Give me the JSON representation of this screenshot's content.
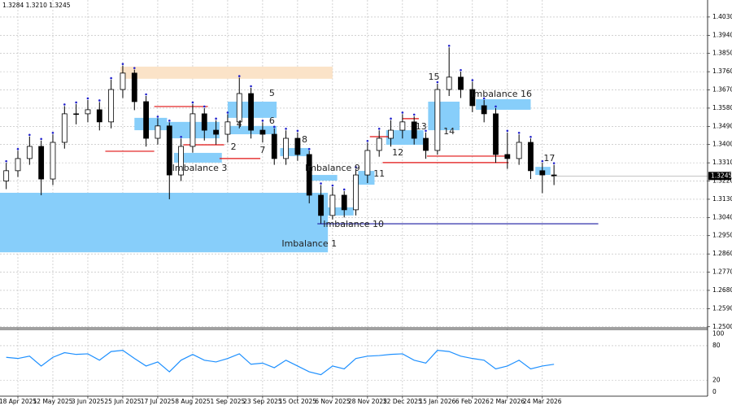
{
  "header": "1.3284 1.3210 1.3245",
  "chart_data": [
    {
      "type": "candlestick",
      "categories": [
        null,
        "18 Apr 2025",
        null,
        null,
        "12 May 2025",
        null,
        null,
        "3 Jun 2025",
        null,
        null,
        "25 Jun 2025",
        null,
        null,
        "17 Jul 2025",
        null,
        null,
        "8 Aug 2025",
        null,
        null,
        "1 Sep 2025",
        null,
        null,
        "23 Sep 2025",
        null,
        null,
        "15 Oct 2025",
        null,
        null,
        "6 Nov 2025",
        null,
        null,
        "28 Nov 2025",
        null,
        null,
        "22 Dec 2025",
        null,
        null,
        "15 Jan 2026",
        null,
        null,
        "6 Feb 2026",
        null,
        null,
        "2 Mar 2026",
        null,
        null,
        "24 Mar 2026",
        null
      ],
      "open": [
        1.322,
        1.3271,
        1.3331,
        1.3391,
        1.323,
        1.3411,
        1.3552,
        1.3552,
        1.3572,
        1.3512,
        1.3672,
        1.3753,
        1.3612,
        1.3431,
        1.3492,
        1.325,
        1.3391,
        1.3552,
        1.3471,
        1.3451,
        1.3512,
        1.3652,
        1.3471,
        1.3451,
        1.3331,
        1.3431,
        1.3351,
        1.315,
        1.305,
        1.315,
        1.3078,
        1.325,
        1.3371,
        1.3431,
        1.3471,
        1.3512,
        1.3431,
        1.3371,
        1.3672,
        1.3733,
        1.3672,
        1.3592,
        1.3552,
        1.3351,
        1.3331,
        1.3411,
        1.3271,
        1.325
      ],
      "high": [
        1.331,
        1.337,
        1.344,
        1.342,
        1.345,
        1.359,
        1.36,
        1.362,
        1.361,
        1.372,
        1.379,
        1.377,
        1.364,
        1.353,
        1.351,
        1.343,
        1.36,
        1.358,
        1.352,
        1.355,
        1.373,
        1.368,
        1.351,
        1.348,
        1.347,
        1.346,
        1.337,
        1.32,
        1.319,
        1.317,
        1.328,
        1.341,
        1.347,
        1.352,
        1.355,
        1.354,
        1.346,
        1.37,
        1.388,
        1.376,
        1.371,
        1.362,
        1.358,
        1.346,
        1.345,
        1.343,
        1.331,
        1.33
      ],
      "low": [
        1.318,
        1.324,
        1.33,
        1.315,
        1.32,
        1.338,
        1.35,
        1.351,
        1.347,
        1.348,
        1.363,
        1.357,
        1.339,
        1.34,
        1.313,
        1.322,
        1.336,
        1.342,
        1.34,
        1.341,
        1.348,
        1.343,
        1.341,
        1.33,
        1.33,
        1.332,
        1.311,
        1.301,
        1.303,
        1.304,
        1.305,
        1.321,
        1.334,
        1.339,
        1.343,
        1.34,
        1.333,
        1.335,
        1.364,
        1.363,
        1.356,
        1.351,
        1.331,
        1.328,
        1.33,
        1.323,
        1.316,
        1.32
      ],
      "close": [
        1.3271,
        1.3331,
        1.3391,
        1.323,
        1.3411,
        1.3552,
        1.3552,
        1.3572,
        1.3512,
        1.3672,
        1.3753,
        1.3612,
        1.3431,
        1.3492,
        1.325,
        1.3391,
        1.3552,
        1.3471,
        1.3451,
        1.3512,
        1.3652,
        1.3471,
        1.3451,
        1.3331,
        1.3431,
        1.3351,
        1.315,
        1.305,
        1.315,
        1.3078,
        1.325,
        1.3371,
        1.3431,
        1.3471,
        1.3512,
        1.3431,
        1.3371,
        1.3672,
        1.3733,
        1.3672,
        1.3592,
        1.3552,
        1.3351,
        1.3331,
        1.3411,
        1.3271,
        1.325,
        1.3245
      ],
      "color_up": "#ffffff",
      "color_down": "#000000",
      "xlim": [
        -0.535,
        60.18
      ],
      "ylim": [
        1.2495,
        1.4114
      ],
      "yticks": [
        {
          "value": 1.403,
          "label": "1.4030"
        },
        {
          "value": 1.394,
          "label": "1.3940"
        },
        {
          "value": 1.385,
          "label": "1.3850"
        },
        {
          "value": 1.376,
          "label": "1.3760"
        },
        {
          "value": 1.367,
          "label": "1.3670"
        },
        {
          "value": 1.358,
          "label": "1.3580"
        },
        {
          "value": 1.349,
          "label": "1.3490"
        },
        {
          "value": 1.34,
          "label": "1.3400"
        },
        {
          "value": 1.331,
          "label": "1.3310"
        },
        {
          "value": 1.322,
          "label": "1.3220"
        },
        {
          "value": 1.313,
          "label": "1.3130"
        },
        {
          "value": 1.304,
          "label": "1.3040"
        },
        {
          "value": 1.295,
          "label": "1.2950"
        },
        {
          "value": 1.286,
          "label": "1.2860"
        },
        {
          "value": 1.277,
          "label": "1.2770"
        },
        {
          "value": 1.268,
          "label": "1.2680"
        },
        {
          "value": 1.259,
          "label": "1.2590"
        },
        {
          "value": 1.25,
          "label": "1.2500"
        }
      ],
      "grid": true,
      "last_price": {
        "value": 1.3245,
        "label": "1.3245"
      },
      "zones": [
        {
          "top": 1.3162,
          "bottom": 1.2868,
          "start": -0.535,
          "end": 27.6,
          "color": "#87cefa"
        },
        {
          "top": 1.3785,
          "bottom": 1.3725,
          "start": 9.8,
          "end": 28.0,
          "color": "#fbe3c8"
        },
        {
          "top": 1.3532,
          "bottom": 1.3471,
          "start": 11.0,
          "end": 13.8,
          "color": "#87cefa"
        },
        {
          "top": 1.3512,
          "bottom": 1.3431,
          "start": 13.8,
          "end": 18.3,
          "color": "#87cefa"
        },
        {
          "top": 1.3359,
          "bottom": 1.3311,
          "start": 14.4,
          "end": 18.5,
          "color": "#87cefa"
        },
        {
          "top": 1.3612,
          "bottom": 1.3532,
          "start": 19.0,
          "end": 23.2,
          "color": "#87cefa"
        },
        {
          "top": 1.3492,
          "bottom": 1.3451,
          "start": 19.0,
          "end": 23.2,
          "color": "#87cefa"
        },
        {
          "top": 1.3383,
          "bottom": 1.3343,
          "start": 23.5,
          "end": 26.0,
          "color": "#87cefa"
        },
        {
          "top": 1.325,
          "bottom": 1.3222,
          "start": 25.8,
          "end": 28.4,
          "color": "#87cefa"
        },
        {
          "top": 1.309,
          "bottom": 1.305,
          "start": 27.4,
          "end": 29.8,
          "color": "#87cefa"
        },
        {
          "top": 1.327,
          "bottom": 1.3202,
          "start": 30.2,
          "end": 31.6,
          "color": "#87cefa"
        },
        {
          "top": 1.3471,
          "bottom": 1.3399,
          "start": 32.6,
          "end": 35.8,
          "color": "#87cefa"
        },
        {
          "top": 1.3612,
          "bottom": 1.3471,
          "start": 36.2,
          "end": 38.9,
          "color": "#87cefa"
        },
        {
          "top": 1.3624,
          "bottom": 1.3572,
          "start": 40.3,
          "end": 45.0,
          "color": "#87cefa"
        },
        {
          "top": 1.329,
          "bottom": 1.325,
          "start": 45.4,
          "end": 46.7,
          "color": "#87cefa"
        }
      ],
      "levels": [
        {
          "value": 1.3588,
          "start": 12.7,
          "end": 17.3,
          "color": "#e01010"
        },
        {
          "value": 1.3367,
          "start": 8.5,
          "end": 12.7,
          "color": "#e01010"
        },
        {
          "value": 1.3399,
          "start": 15.2,
          "end": 18.7,
          "color": "#e01010"
        },
        {
          "value": 1.3331,
          "start": 18.3,
          "end": 21.8,
          "color": "#e01010"
        },
        {
          "value": 1.3528,
          "start": 34.0,
          "end": 35.4,
          "color": "#e01010"
        },
        {
          "value": 1.3439,
          "start": 31.2,
          "end": 33.0,
          "color": "#e01010"
        },
        {
          "value": 1.3343,
          "start": 36.1,
          "end": 43.1,
          "color": "#e01010"
        },
        {
          "value": 1.3311,
          "start": 32.3,
          "end": 43.1,
          "color": "#e01010"
        },
        {
          "value": 1.3009,
          "start": 26.7,
          "end": 50.8,
          "color": "#1a1aa0"
        }
      ],
      "annotations": [
        {
          "text": "Imbalance 1",
          "x": 26.0,
          "y": 1.2909
        },
        {
          "text": "2",
          "x": 19.5,
          "y": 1.3387
        },
        {
          "text": "Imbalance 3",
          "x": 16.6,
          "y": 1.3283
        },
        {
          "text": "4",
          "x": 20.0,
          "y": 1.3499
        },
        {
          "text": "5",
          "x": 22.8,
          "y": 1.3652
        },
        {
          "text": "6",
          "x": 22.8,
          "y": 1.3516
        },
        {
          "text": "7",
          "x": 22.0,
          "y": 1.3371
        },
        {
          "text": "8",
          "x": 25.6,
          "y": 1.3423
        },
        {
          "text": "Imbalance 9",
          "x": 28.0,
          "y": 1.3283
        },
        {
          "text": "Imbalance 10",
          "x": 29.8,
          "y": 1.3005
        },
        {
          "text": "11",
          "x": 32.0,
          "y": 1.3255
        },
        {
          "text": "12",
          "x": 33.6,
          "y": 1.3359
        },
        {
          "text": "13",
          "x": 35.6,
          "y": 1.3487
        },
        {
          "text": "14",
          "x": 38.0,
          "y": 1.3463
        },
        {
          "text": "15",
          "x": 36.7,
          "y": 1.3733
        },
        {
          "text": "Imbalance 16",
          "x": 42.5,
          "y": 1.3648
        },
        {
          "text": "17",
          "x": 46.6,
          "y": 1.3331
        }
      ]
    },
    {
      "type": "line",
      "values": [
        60,
        58,
        62,
        45,
        60,
        68,
        65,
        66,
        55,
        70,
        72,
        58,
        45,
        52,
        35,
        55,
        65,
        55,
        52,
        58,
        66,
        48,
        50,
        42,
        55,
        45,
        35,
        30,
        45,
        40,
        58,
        62,
        63,
        65,
        66,
        55,
        50,
        72,
        70,
        62,
        58,
        55,
        40,
        45,
        55,
        40,
        45,
        48
      ],
      "color": "#1e90ff",
      "ylim": [
        -7,
        108
      ],
      "yticks": [
        100,
        80,
        20,
        0
      ]
    }
  ]
}
